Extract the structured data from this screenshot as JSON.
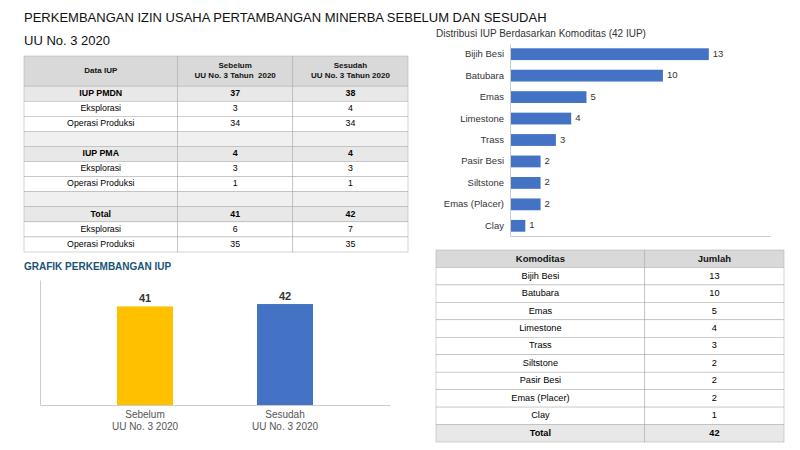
{
  "chart_data": [
    {
      "type": "table",
      "title": "PERKEMBANGAN IZIN USAHA PERTAMBANGAN MINERBA SEBELUM DAN SESUDAH",
      "subtitle": "UU No. 3 2020",
      "xlabel": "Data IUP",
      "categories": [
        "IUP PMDN",
        "Eksplorasi",
        "Operasi Produksi",
        null,
        "IUP PMA",
        "Eksplorasi",
        "Operasi Produksi",
        null,
        "Total",
        "Eksplorasi",
        "Operasi Produksi"
      ],
      "series": [
        {
          "name": "Sebelum\nUU No. 3 Tahun  2020",
          "values": [
            37,
            3,
            34,
            null,
            4,
            3,
            1,
            null,
            41,
            6,
            35
          ]
        },
        {
          "name": "Sesudah\nUU No. 3 Tahun 2020",
          "values": [
            38,
            4,
            34,
            null,
            4,
            3,
            1,
            null,
            42,
            7,
            35
          ]
        }
      ]
    },
    {
      "type": "bar",
      "title": "GRAFIK PERKEMBANGAN IUP",
      "categories": [
        "Sebelum\nUU No. 3 2020",
        "Sesudah\nUU No. 3 2020"
      ],
      "values": [
        41,
        42
      ],
      "colors": [
        "#FFC000",
        "#4472C4"
      ],
      "ylim": [
        0,
        52
      ],
      "tick_labels": "x",
      "data_labels": true
    },
    {
      "type": "bar",
      "title": "Distribusi IUP Berdasarkan Komoditas (42 IUP)",
      "orientation": "horizontal",
      "categories": [
        "Bijih Besi",
        "Batubara",
        "Emas",
        "Limestone",
        "Trass",
        "Pasir Besi",
        "Siltstone",
        "Emas (Placer)",
        "Clay"
      ],
      "values": [
        13,
        10,
        5,
        4,
        3,
        2,
        2,
        2,
        1
      ],
      "color": "#4472C4",
      "xlim": [
        0,
        17
      ],
      "tick_labels": "y",
      "data_labels": true
    },
    {
      "type": "table",
      "xlabel": "Komoditas",
      "categories": [
        "Bijih Besi",
        "Batubara",
        "Emas",
        "Limestone",
        "Trass",
        "Siltstone",
        "Pasir Besi",
        "Emas (Placer)",
        "Clay",
        "Total"
      ],
      "series": [
        {
          "name": "Jumlah",
          "values": [
            13,
            10,
            5,
            4,
            3,
            2,
            2,
            2,
            1,
            42
          ]
        }
      ]
    }
  ]
}
